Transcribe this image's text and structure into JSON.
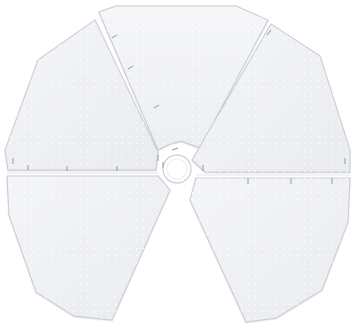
{
  "image": {
    "subject": "segmented-panel-illustration",
    "colors": {
      "background": "#ffffff",
      "panel_fill": "#f0f1f4",
      "panel_edge": "#c9ccd3",
      "seam": "#e4e6ea",
      "dot": "#ffffff",
      "marker": "#7b8796"
    }
  }
}
